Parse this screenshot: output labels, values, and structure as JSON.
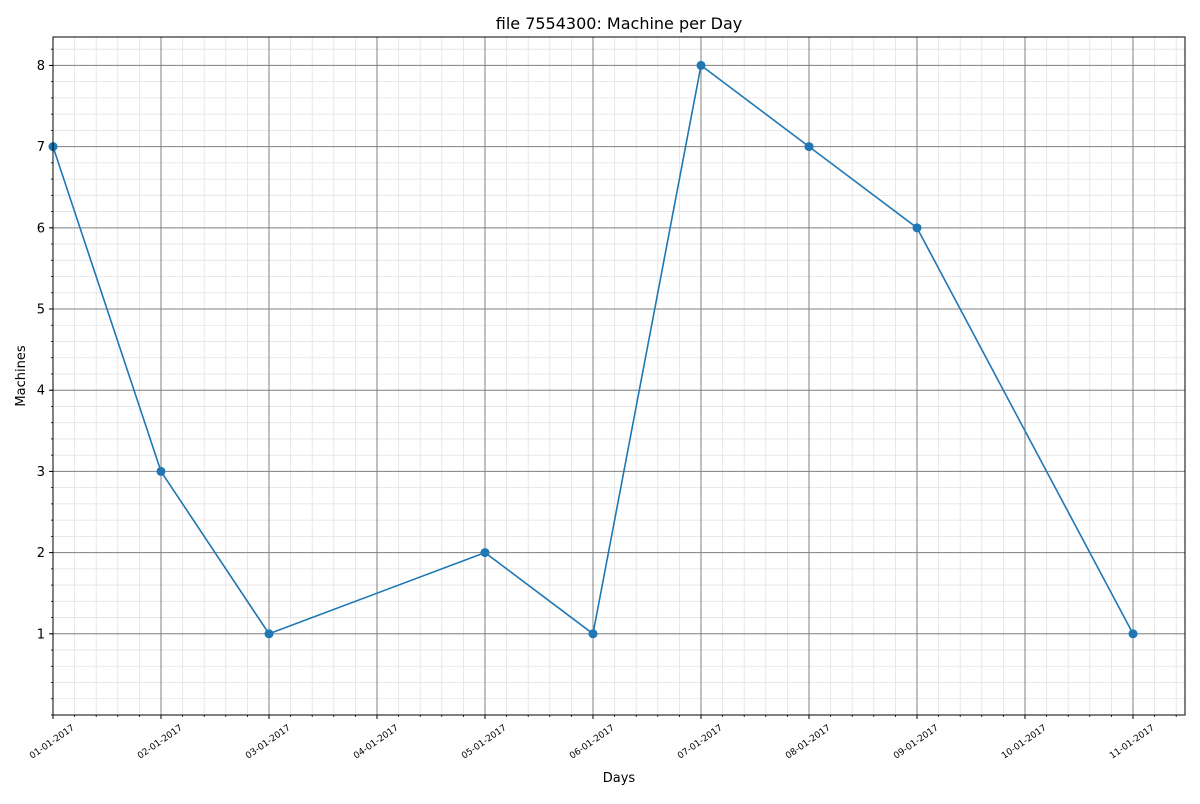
{
  "chart_data": {
    "type": "line",
    "title": "file 7554300: Machine per Day",
    "xlabel": "Days",
    "ylabel": "Machines",
    "x_tick_labels": [
      "01-01-2017",
      "02-01-2017",
      "03-01-2017",
      "04-01-2017",
      "05-01-2017",
      "06-01-2017",
      "07-01-2017",
      "08-01-2017",
      "09-01-2017",
      "10-01-2017",
      "11-01-2017"
    ],
    "y_ticks": [
      1,
      2,
      3,
      4,
      5,
      6,
      7,
      8
    ],
    "ylim": [
      0,
      8.35
    ],
    "grid": true,
    "legend": "none",
    "series": [
      {
        "color": "#1f77b4",
        "marker": "circle",
        "points": [
          {
            "x": "01-01-2017",
            "y": 7
          },
          {
            "x": "02-01-2017",
            "y": 3
          },
          {
            "x": "03-01-2017",
            "y": 1
          },
          {
            "x": "05-01-2017",
            "y": 2
          },
          {
            "x": "06-01-2017",
            "y": 1
          },
          {
            "x": "07-01-2017",
            "y": 8
          },
          {
            "x": "08-01-2017",
            "y": 7
          },
          {
            "x": "09-01-2017",
            "y": 6
          },
          {
            "x": "11-01-2017",
            "y": 1
          }
        ]
      }
    ]
  }
}
